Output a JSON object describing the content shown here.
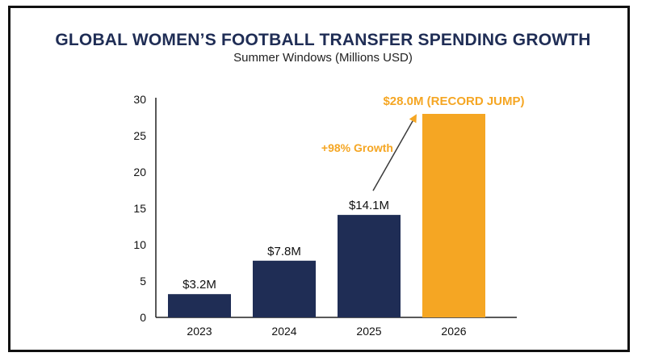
{
  "header": {
    "title": "GLOBAL WOMEN’S FOOTBALL TRANSFER SPENDING GROWTH",
    "subtitle": "Summer Windows (Millions USD)"
  },
  "colors": {
    "bar_default": "#1f2d55",
    "bar_highlight": "#f5a623",
    "title": "#1f2d55",
    "arrow": "#3a3a3a"
  },
  "chart_data": {
    "type": "bar",
    "title": "GLOBAL WOMEN’S FOOTBALL TRANSFER SPENDING GROWTH",
    "subtitle": "Summer Windows (Millions USD)",
    "categories": [
      "2023",
      "2024",
      "2025",
      "2026"
    ],
    "values": [
      3.2,
      7.8,
      14.1,
      28.0
    ],
    "data_labels": [
      "$3.2M",
      "$7.8M",
      "$14.1M",
      "$28.0M (RECORD JUMP)"
    ],
    "highlight_index": 3,
    "ylim": [
      0,
      30
    ],
    "yticks": [
      0,
      5,
      10,
      15,
      20,
      25,
      30
    ],
    "xlabel": "",
    "ylabel": "",
    "grid": false,
    "annotations": [
      {
        "text": "+98% Growth",
        "from_category": "2025",
        "to_category": "2026"
      }
    ]
  }
}
